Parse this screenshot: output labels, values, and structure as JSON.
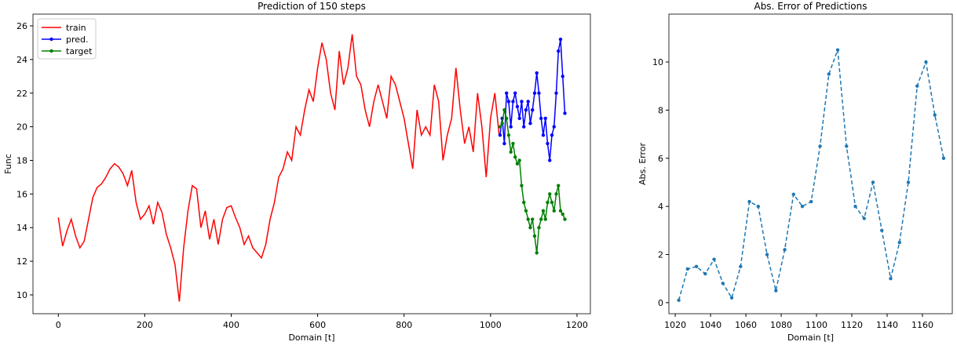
{
  "chart_data": [
    {
      "type": "line",
      "title": "Prediction of 150 steps",
      "xlabel": "Domain [t]",
      "ylabel": "Func",
      "xlim": [
        -58.6,
        1231
      ],
      "ylim": [
        8.88,
        26.7
      ],
      "xticks": [
        0,
        200,
        400,
        600,
        800,
        1000,
        1200
      ],
      "yticks": [
        10,
        12,
        14,
        16,
        18,
        20,
        22,
        24,
        26
      ],
      "legend": "upper left",
      "series": [
        {
          "name": "train",
          "color": "#ff0000",
          "x": [
            0,
            10,
            20,
            30,
            40,
            50,
            60,
            70,
            80,
            90,
            100,
            110,
            120,
            130,
            140,
            150,
            160,
            170,
            180,
            190,
            200,
            210,
            220,
            230,
            240,
            250,
            260,
            270,
            280,
            290,
            300,
            310,
            320,
            330,
            340,
            350,
            360,
            370,
            380,
            390,
            400,
            410,
            420,
            430,
            440,
            450,
            460,
            470,
            480,
            490,
            500,
            510,
            520,
            530,
            540,
            550,
            560,
            570,
            580,
            590,
            600,
            610,
            620,
            630,
            640,
            650,
            660,
            670,
            680,
            690,
            700,
            710,
            720,
            730,
            740,
            750,
            760,
            770,
            780,
            790,
            800,
            810,
            820,
            830,
            840,
            850,
            860,
            870,
            880,
            890,
            900,
            910,
            920,
            930,
            940,
            950,
            960,
            970,
            980,
            990,
            1000,
            1010,
            1020
          ],
          "values": [
            14.6,
            12.9,
            13.8,
            14.5,
            13.5,
            12.8,
            13.2,
            14.5,
            15.8,
            16.4,
            16.6,
            17.0,
            17.5,
            17.8,
            17.6,
            17.2,
            16.5,
            17.4,
            15.5,
            14.5,
            14.8,
            15.3,
            14.2,
            15.5,
            14.9,
            13.6,
            12.8,
            11.8,
            9.6,
            12.8,
            15.0,
            16.5,
            16.3,
            14.0,
            15.0,
            13.3,
            14.5,
            13.0,
            14.5,
            15.2,
            15.3,
            14.6,
            14.0,
            13.0,
            13.5,
            12.8,
            12.5,
            12.2,
            13.0,
            14.5,
            15.5,
            17.0,
            17.5,
            18.5,
            18.0,
            20.0,
            19.5,
            21.0,
            22.2,
            21.5,
            23.5,
            25.0,
            24.0,
            22.0,
            21.0,
            24.5,
            22.5,
            23.5,
            25.5,
            23.0,
            22.5,
            21.0,
            20.0,
            21.5,
            22.5,
            21.5,
            20.5,
            23.0,
            22.5,
            21.5,
            20.5,
            19.0,
            17.5,
            21.0,
            19.5,
            20.0,
            19.5,
            22.5,
            21.5,
            18.0,
            19.5,
            20.5,
            23.5,
            21.0,
            19.0,
            20.0,
            18.5,
            22.0,
            20.0,
            17.0,
            20.5,
            22.0,
            19.5
          ]
        },
        {
          "name": "pred.",
          "color": "#0000ff",
          "marker": "o",
          "x": [
            1022,
            1027,
            1032,
            1037,
            1042,
            1047,
            1052,
            1057,
            1062,
            1067,
            1072,
            1077,
            1082,
            1087,
            1092,
            1097,
            1102,
            1107,
            1112,
            1117,
            1122,
            1127,
            1132,
            1137,
            1142,
            1147,
            1152,
            1157,
            1162,
            1167,
            1172
          ],
          "values": [
            19.5,
            20.5,
            19.0,
            22.0,
            21.5,
            20.0,
            21.5,
            22.0,
            21.2,
            20.5,
            21.5,
            20.0,
            21.0,
            21.5,
            20.2,
            21.0,
            22.0,
            23.2,
            22.0,
            20.5,
            19.5,
            20.5,
            19.0,
            18.0,
            19.5,
            20.0,
            22.0,
            24.5,
            25.2,
            23.0,
            20.8
          ]
        },
        {
          "name": "target",
          "color": "#008000",
          "marker": "o",
          "x": [
            1022,
            1027,
            1032,
            1037,
            1042,
            1047,
            1052,
            1057,
            1062,
            1067,
            1072,
            1077,
            1082,
            1087,
            1092,
            1097,
            1102,
            1107,
            1112,
            1117,
            1122,
            1127,
            1132,
            1137,
            1142,
            1147,
            1152,
            1157,
            1162,
            1167,
            1172
          ],
          "values": [
            20.0,
            20.2,
            21.0,
            20.5,
            19.5,
            18.5,
            19.0,
            18.2,
            17.8,
            18.0,
            16.5,
            15.5,
            15.0,
            14.5,
            14.0,
            14.5,
            13.5,
            12.5,
            14.0,
            14.5,
            15.0,
            14.5,
            15.5,
            16.0,
            15.5,
            15.0,
            16.0,
            16.5,
            15.0,
            14.8,
            14.5
          ]
        }
      ]
    },
    {
      "type": "line",
      "title": "Abs. Error of Predictions",
      "xlabel": "Domain [t]",
      "ylabel": "Abs. Error",
      "xlim": [
        1016.4,
        1176.9
      ],
      "ylim": [
        -0.46,
        11.99
      ],
      "xticks": [
        1020,
        1040,
        1060,
        1080,
        1100,
        1120,
        1140,
        1160
      ],
      "yticks": [
        0,
        2,
        4,
        6,
        8,
        10
      ],
      "series": [
        {
          "color": "#1f77b4",
          "marker": "o",
          "linestyle": "dashed",
          "x": [
            1022,
            1027,
            1032,
            1037,
            1042,
            1047,
            1052,
            1057,
            1062,
            1067,
            1072,
            1077,
            1082,
            1087,
            1092,
            1097,
            1102,
            1107,
            1112,
            1117,
            1122,
            1127,
            1132,
            1137,
            1142,
            1147,
            1152,
            1157,
            1162,
            1167,
            1172
          ],
          "values": [
            0.1,
            1.4,
            1.5,
            1.2,
            1.8,
            0.8,
            0.2,
            1.5,
            4.2,
            4.0,
            2.0,
            0.5,
            2.2,
            4.5,
            4.0,
            4.2,
            6.5,
            9.5,
            10.5,
            6.5,
            4.0,
            3.5,
            5.0,
            3.0,
            1.0,
            2.5,
            5.0,
            9.0,
            10.0,
            7.8,
            6.0
          ]
        }
      ]
    }
  ]
}
